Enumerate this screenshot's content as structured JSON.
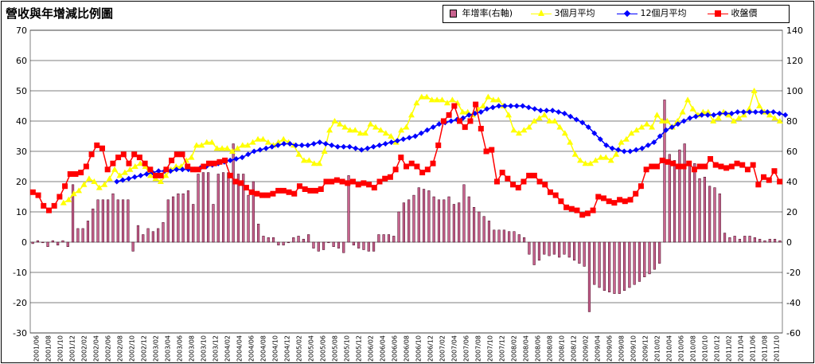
{
  "title": "營收與年增減比例圖",
  "legend": [
    {
      "label": "年增率(右軸)",
      "marker": "bar",
      "color": "#c8638f"
    },
    {
      "label": "3個月平均",
      "marker": "triangle",
      "color": "#ffff00"
    },
    {
      "label": "12個月平均",
      "marker": "diamond",
      "color": "#0000ff"
    },
    {
      "label": "收盤價",
      "marker": "square",
      "color": "#ff0000"
    }
  ],
  "chart_data": {
    "type": "bar+line",
    "left_axis": {
      "min": -30,
      "max": 70,
      "step": 10,
      "ticks": [
        "70",
        "60",
        "50",
        "40",
        "30",
        "20",
        "10",
        "0",
        "-10",
        "-20",
        "-30"
      ]
    },
    "right_axis": {
      "min": -60,
      "max": 140,
      "step": 20,
      "ticks": [
        "140",
        "120",
        "100",
        "80",
        "60",
        "40",
        "20",
        "0",
        "-20",
        "-40",
        "-60"
      ]
    },
    "grid": true,
    "x_labels": [
      "2001/06",
      "2001/08",
      "2001/10",
      "2001/12",
      "2002/02",
      "2002/04",
      "2002/06",
      "2002/08",
      "2002/10",
      "2002/12",
      "2003/02",
      "2003/04",
      "2003/06",
      "2003/08",
      "2003/10",
      "2003/12",
      "2004/02",
      "2004/04",
      "2004/06",
      "2004/08",
      "2004/10",
      "2004/12",
      "2005/02",
      "2005/04",
      "2005/06",
      "2005/08",
      "2005/10",
      "2005/12",
      "2006/02",
      "2006/04",
      "2006/06",
      "2006/08",
      "2006/10",
      "2006/12",
      "2007/02",
      "2007/04",
      "2007/06",
      "2007/08",
      "2007/10",
      "2007/12",
      "2008/02",
      "2008/04",
      "2008/06",
      "2008/08",
      "2008/10",
      "2008/12",
      "2009/02",
      "2009/04",
      "2009/06",
      "2009/08",
      "2009/10",
      "2009/12",
      "2010/02",
      "2010/04",
      "2010/06",
      "2010/08",
      "2010/10",
      "2010/12",
      "2011/02",
      "2011/04",
      "2011/06",
      "2011/08",
      "2011/10"
    ],
    "series": [
      {
        "name": "年增率(右軸)",
        "type": "bar",
        "axis": "right",
        "color": "#c8638f",
        "values": [
          -1,
          1,
          0,
          -3,
          1,
          -2,
          1,
          -3,
          38,
          9,
          9,
          14,
          22,
          28,
          28,
          28,
          32,
          28,
          28,
          28,
          -6,
          11,
          5,
          9,
          7,
          9,
          13,
          28,
          30,
          32,
          32,
          34,
          25,
          45,
          46,
          46,
          25,
          45,
          46,
          46,
          65,
          45,
          45,
          31,
          40,
          12,
          4,
          3,
          3,
          -2,
          -2,
          0,
          3,
          4,
          2,
          5,
          -4,
          -6,
          -5,
          0,
          -3,
          -4,
          -7,
          44,
          -2,
          -4,
          -5,
          -6,
          -6,
          5,
          5,
          5,
          4,
          20,
          26,
          28,
          31,
          36,
          35,
          34,
          30,
          28,
          28,
          30,
          25,
          26,
          38,
          30,
          23,
          20,
          17,
          14,
          8,
          8,
          8,
          7,
          7,
          5,
          3,
          -8,
          -15,
          -12,
          -8,
          -9,
          -8,
          -10,
          -8,
          -10,
          -12,
          -14,
          -16,
          -46,
          -28,
          -30,
          -32,
          -33,
          -34,
          -34,
          -32,
          -30,
          -28,
          -26,
          -23,
          -21,
          -18,
          -14,
          94,
          58,
          54,
          61,
          65,
          53,
          52,
          42,
          43,
          37,
          36,
          32,
          6,
          3,
          4,
          2,
          4,
          4,
          3,
          2,
          1,
          2,
          2,
          1
        ]
      },
      {
        "name": "3個月平均",
        "type": "line",
        "axis": "left",
        "color": "#ffff00",
        "values": [
          null,
          null,
          null,
          null,
          null,
          null,
          13,
          14,
          16,
          17,
          19,
          21,
          20,
          18,
          19,
          21,
          24,
          22,
          23,
          24,
          25,
          26,
          25,
          22,
          21,
          20,
          22,
          24,
          25,
          25,
          27,
          28,
          32,
          32,
          33,
          33,
          31,
          31,
          31,
          30,
          31,
          32,
          32,
          33,
          34,
          34,
          33,
          32,
          33,
          34,
          33,
          32,
          29,
          27,
          27,
          26,
          26,
          30,
          37,
          40,
          39,
          38,
          37,
          37,
          36,
          36,
          39,
          38,
          37,
          36,
          35,
          33,
          37,
          38,
          42,
          46,
          48,
          48,
          47,
          47,
          47,
          46,
          47,
          46,
          43,
          43,
          42,
          44,
          45,
          48,
          47,
          47,
          45,
          42,
          37,
          36,
          37,
          38,
          40,
          41,
          42,
          40,
          40,
          38,
          36,
          33,
          29,
          27,
          26,
          26,
          27,
          28,
          28,
          27,
          29,
          33,
          34,
          36,
          37,
          38,
          39,
          38,
          42,
          40,
          40,
          38,
          40,
          43,
          47,
          44,
          42,
          43,
          43,
          40,
          41,
          43,
          42,
          40,
          41,
          42,
          44,
          50,
          45,
          43,
          42,
          41,
          40
        ]
      },
      {
        "name": "12個月平均",
        "type": "line",
        "axis": "left",
        "color": "#0000ff",
        "values": [
          null,
          null,
          null,
          null,
          null,
          null,
          null,
          null,
          null,
          null,
          null,
          null,
          null,
          null,
          null,
          null,
          null,
          null,
          null,
          null,
          null,
          null,
          null,
          null,
          null,
          null,
          null,
          null,
          null,
          null,
          null,
          null,
          null,
          null,
          null,
          null,
          null,
          null,
          null,
          null,
          null,
          null,
          null,
          null,
          null,
          null,
          null,
          null,
          null,
          null,
          null,
          null,
          null,
          null,
          null,
          null,
          null,
          null,
          null,
          null,
          null,
          null,
          null,
          null,
          null,
          null,
          null,
          null,
          null,
          null,
          null,
          null,
          null,
          null,
          null,
          null,
          null,
          null,
          null,
          null,
          null,
          null,
          null,
          null,
          null,
          null,
          null,
          null,
          null,
          null,
          null,
          null,
          null,
          null,
          null,
          null,
          null,
          null,
          null,
          null,
          null,
          null,
          null,
          null,
          null,
          null,
          null,
          null,
          null,
          null,
          null,
          null,
          null,
          null,
          null,
          null,
          null,
          null,
          null,
          null,
          null,
          null,
          null,
          null,
          null,
          null,
          null,
          null,
          null,
          null,
          null,
          null,
          null,
          null,
          null,
          null,
          null,
          null,
          null,
          null,
          null,
          null,
          null,
          null,
          null,
          null,
          null
        ]
      }
    ],
    "line_12m": [
      20,
      20.5,
      21,
      21.5,
      22,
      22.5,
      23,
      23.5,
      23.5,
      23.5,
      24,
      24,
      24,
      24,
      24.5,
      25,
      25.5,
      26,
      26.5,
      27,
      27.5,
      28,
      29,
      30,
      30.5,
      31,
      31.5,
      32,
      32.5,
      32.5,
      32,
      32,
      32,
      32.5,
      33,
      32.5,
      32,
      31.5,
      31.5,
      31.5,
      31,
      30.5,
      31,
      31.5,
      32,
      32.5,
      33,
      33.5,
      34,
      34.5,
      35,
      36,
      37,
      38,
      39,
      39.5,
      40,
      40.5,
      41,
      42,
      42.5,
      43,
      44,
      44.5,
      45,
      45,
      45,
      45,
      45,
      44.5,
      44,
      43.5,
      43.5,
      43.5,
      43,
      42.5,
      41.5,
      40.5,
      39.5,
      38,
      36,
      34,
      32,
      31,
      30.5,
      30,
      30,
      30.5,
      31,
      32,
      33,
      35,
      37,
      38,
      39,
      40,
      41,
      41.5,
      42,
      42,
      42,
      42.5,
      42.5,
      42.5,
      43,
      43,
      43,
      43,
      43,
      43,
      43,
      42.5,
      42
    ],
    "line_12m_start_index": 30,
    "close_price": [
      16.5,
      15.5,
      12,
      10.5,
      12,
      15,
      18.5,
      22.5,
      22.5,
      23,
      25,
      29,
      32,
      31,
      24,
      26,
      28,
      29,
      26,
      29,
      28,
      26,
      24,
      22,
      22,
      24,
      27,
      29,
      29,
      25,
      24,
      24,
      25,
      26,
      26,
      26.5,
      27,
      22,
      20,
      19.5,
      18,
      16.5,
      16,
      15.5,
      15.5,
      16,
      17,
      17,
      16.5,
      16,
      18.5,
      17.5,
      17,
      17,
      17.5,
      20,
      20,
      20.5,
      20,
      19.5,
      20,
      19,
      19.5,
      19,
      18,
      20,
      21,
      21.5,
      24,
      28,
      25,
      26,
      25,
      23,
      24,
      26,
      32,
      40,
      42,
      45,
      40,
      38,
      40,
      45.5,
      37.5,
      30,
      30.5,
      20,
      23,
      21,
      19,
      18,
      20,
      22,
      22,
      20,
      19,
      16.5,
      15.5,
      13.5,
      11.5,
      11,
      10.5,
      9,
      9.5,
      10.5,
      15,
      14.5,
      13.5,
      13,
      14,
      13.5,
      14,
      16,
      18.5,
      24,
      25,
      25,
      27,
      26.5,
      26,
      25,
      25,
      26,
      24,
      25,
      25,
      27.5,
      25.5,
      25,
      24.5,
      25,
      26,
      25.5,
      24,
      25.5,
      19,
      21.5,
      20.5,
      23.5,
      20
    ]
  }
}
